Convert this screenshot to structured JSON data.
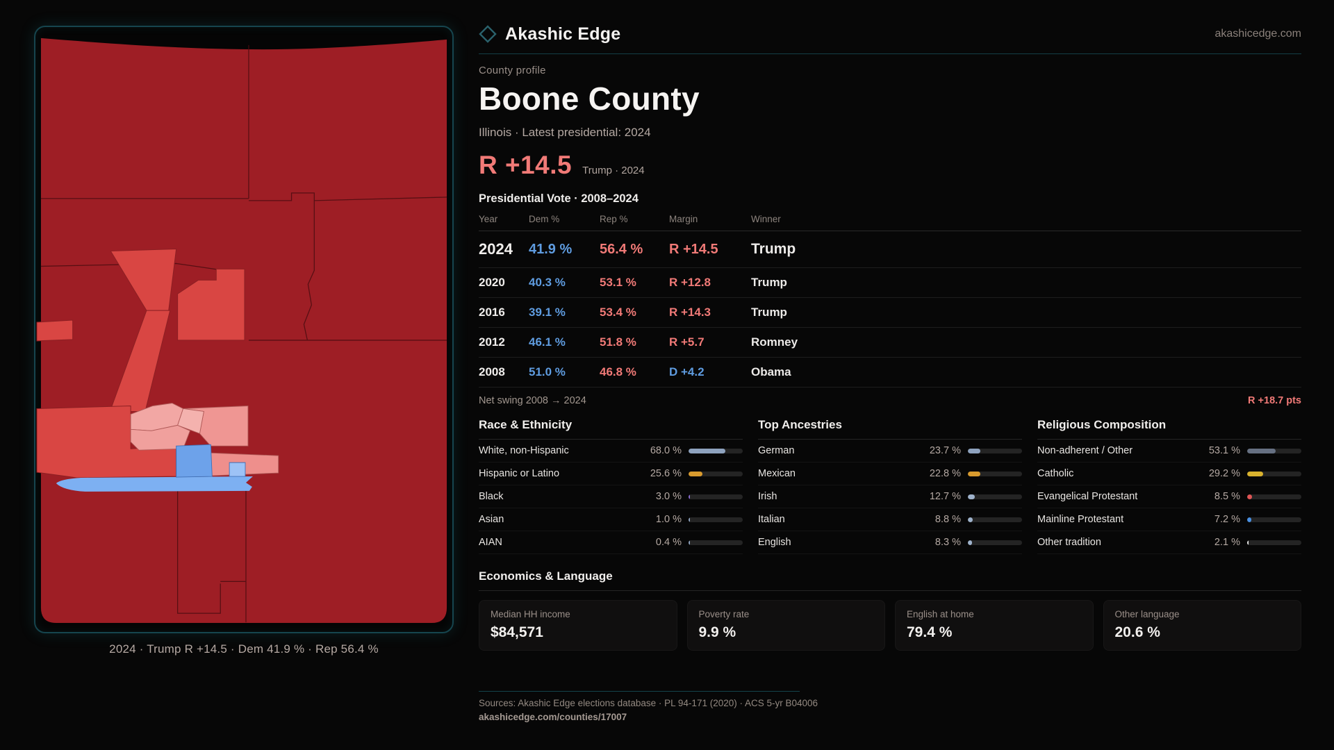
{
  "brand": {
    "name": "Akashic Edge",
    "site": "akashicedge.com",
    "logo": "diamond-icon"
  },
  "profile": {
    "kicker": "County profile",
    "title": "Boone County",
    "subtitle": "Illinois · Latest presidential: 2024",
    "headline_margin": "R +14.5",
    "headline_context": "Trump · 2024"
  },
  "vote_table": {
    "title": "Presidential Vote · 2008–2024",
    "columns": [
      "Year",
      "Dem %",
      "Rep %",
      "Margin",
      "Winner"
    ],
    "rows": [
      {
        "year": "2024",
        "dem": "41.9 %",
        "rep": "56.4 %",
        "margin": "R +14.5",
        "margin_party": "R",
        "winner": "Trump",
        "featured": true
      },
      {
        "year": "2020",
        "dem": "40.3 %",
        "rep": "53.1 %",
        "margin": "R +12.8",
        "margin_party": "R",
        "winner": "Trump",
        "featured": false
      },
      {
        "year": "2016",
        "dem": "39.1 %",
        "rep": "53.4 %",
        "margin": "R +14.3",
        "margin_party": "R",
        "winner": "Trump",
        "featured": false
      },
      {
        "year": "2012",
        "dem": "46.1 %",
        "rep": "51.8 %",
        "margin": "R +5.7",
        "margin_party": "R",
        "winner": "Romney",
        "featured": false
      },
      {
        "year": "2008",
        "dem": "51.0 %",
        "rep": "46.8 %",
        "margin": "D +4.2",
        "margin_party": "D",
        "winner": "Obama",
        "featured": false
      }
    ],
    "net_swing_label": "Net swing 2008 → 2024",
    "net_swing_value": "R +18.7 pts"
  },
  "demographics": [
    {
      "heading": "Race & Ethnicity",
      "rows": [
        {
          "label": "White, non-Hispanic",
          "value": "68.0 %",
          "pct": 68.0,
          "color": "#8ea2be"
        },
        {
          "label": "Hispanic or Latino",
          "value": "25.6 %",
          "pct": 25.6,
          "color": "#d99b2e"
        },
        {
          "label": "Black",
          "value": "3.0 %",
          "pct": 3.0,
          "color": "#8a6bd1"
        },
        {
          "label": "Asian",
          "value": "1.0 %",
          "pct": 1.0,
          "color": "#8ea2be"
        },
        {
          "label": "AIAN",
          "value": "0.4 %",
          "pct": 0.4,
          "color": "#8ea2be"
        }
      ]
    },
    {
      "heading": "Top Ancestries",
      "rows": [
        {
          "label": "German",
          "value": "23.7 %",
          "pct": 23.7,
          "color": "#8ea2be"
        },
        {
          "label": "Mexican",
          "value": "22.8 %",
          "pct": 22.8,
          "color": "#d99b2e"
        },
        {
          "label": "Irish",
          "value": "12.7 %",
          "pct": 12.7,
          "color": "#9fb3cc"
        },
        {
          "label": "Italian",
          "value": "8.8 %",
          "pct": 8.8,
          "color": "#9fb3cc"
        },
        {
          "label": "English",
          "value": "8.3 %",
          "pct": 8.3,
          "color": "#9fb3cc"
        }
      ]
    },
    {
      "heading": "Religious Composition",
      "rows": [
        {
          "label": "Non-adherent / Other",
          "value": "53.1 %",
          "pct": 53.1,
          "color": "#667082"
        },
        {
          "label": "Catholic",
          "value": "29.2 %",
          "pct": 29.2,
          "color": "#d9b22e"
        },
        {
          "label": "Evangelical Protestant",
          "value": "8.5 %",
          "pct": 8.5,
          "color": "#e05555"
        },
        {
          "label": "Mainline Protestant",
          "value": "7.2 %",
          "pct": 7.2,
          "color": "#4a90e2"
        },
        {
          "label": "Other tradition",
          "value": "2.1 %",
          "pct": 2.1,
          "color": "#e8e8e8"
        }
      ]
    }
  ],
  "economics": {
    "heading": "Economics & Language",
    "cards": [
      {
        "label": "Median HH income",
        "value": "$84,571"
      },
      {
        "label": "Poverty rate",
        "value": "9.9 %"
      },
      {
        "label": "English at home",
        "value": "79.4 %"
      },
      {
        "label": "Other language",
        "value": "20.6 %"
      }
    ]
  },
  "map": {
    "caption": "2024 · Trump R +14.5 · Dem 41.9 % · Rep 56.4 %"
  },
  "footer": {
    "sources": "Sources: Akashic Edge elections database · PL 94-171 (2020) · ACS 5-yr B04006",
    "permalink": "akashicedge.com/counties/17007"
  },
  "colors": {
    "accent_teal": "#16454e",
    "dem_blue": "#5f9ce0",
    "rep_red": "#f17a77",
    "map_dark_red": "#9e1e25",
    "map_medium_red": "#d94643",
    "map_pink": "#f2a7a4",
    "map_blue": "#7db0f2"
  },
  "chart_data": [
    {
      "type": "table",
      "title": "Presidential Vote · 2008–2024",
      "columns": [
        "Year",
        "Dem %",
        "Rep %",
        "Margin",
        "Winner"
      ],
      "rows": [
        [
          "2024",
          41.9,
          56.4,
          "R +14.5",
          "Trump"
        ],
        [
          "2020",
          40.3,
          53.1,
          "R +12.8",
          "Trump"
        ],
        [
          "2016",
          39.1,
          53.4,
          "R +14.3",
          "Trump"
        ],
        [
          "2012",
          46.1,
          51.8,
          "R +5.7",
          "Romney"
        ],
        [
          "2008",
          51.0,
          46.8,
          "D +4.2",
          "Obama"
        ]
      ]
    },
    {
      "type": "bar",
      "title": "Race & Ethnicity",
      "unit": "%",
      "categories": [
        "White, non-Hispanic",
        "Hispanic or Latino",
        "Black",
        "Asian",
        "AIAN"
      ],
      "values": [
        68.0,
        25.6,
        3.0,
        1.0,
        0.4
      ],
      "xlim": [
        0,
        100
      ]
    },
    {
      "type": "bar",
      "title": "Top Ancestries",
      "unit": "%",
      "categories": [
        "German",
        "Mexican",
        "Irish",
        "Italian",
        "English"
      ],
      "values": [
        23.7,
        22.8,
        12.7,
        8.8,
        8.3
      ],
      "xlim": [
        0,
        100
      ]
    },
    {
      "type": "bar",
      "title": "Religious Composition",
      "unit": "%",
      "categories": [
        "Non-adherent / Other",
        "Catholic",
        "Evangelical Protestant",
        "Mainline Protestant",
        "Other tradition"
      ],
      "values": [
        53.1,
        29.2,
        8.5,
        7.2,
        2.1
      ],
      "xlim": [
        0,
        100
      ]
    }
  ]
}
